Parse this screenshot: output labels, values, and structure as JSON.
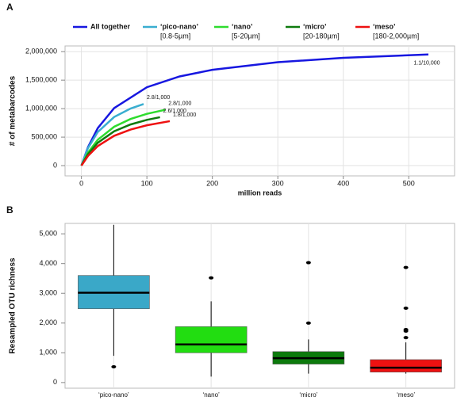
{
  "chart_data": [
    {
      "type": "line",
      "panel": "A",
      "x_label": "million reads",
      "y_label": "# of metabarcodes",
      "xlim": [
        -25,
        570
      ],
      "xticks": [
        0,
        100,
        200,
        300,
        400,
        500
      ],
      "ylim": [
        -180000,
        2100000
      ],
      "yticks": [
        0,
        {
          "value": 500000,
          "label": "500,000"
        },
        {
          "value": 1000000,
          "label": "1,000,000"
        },
        {
          "value": 1500000,
          "label": "1,500,000"
        },
        {
          "value": 2000000,
          "label": "2,000,000"
        }
      ],
      "grid": true,
      "series": [
        {
          "name": "All together",
          "color": "#1717e0",
          "end_label": "1.1/10,000",
          "x": [
            0,
            10,
            25,
            50,
            100,
            150,
            200,
            300,
            400,
            530
          ],
          "values": [
            0,
            322000,
            659000,
            1009000,
            1376000,
            1565000,
            1681000,
            1815000,
            1891000,
            1950000
          ]
        },
        {
          "name": "‘pico-nano’",
          "size_range": "[0.8-5µm]",
          "color": "#3aaed0",
          "end_label": "2.8/1,000",
          "x": [
            0,
            10,
            25,
            50,
            75,
            95
          ],
          "values": [
            0,
            307000,
            590000,
            853000,
            1001000,
            1080000
          ]
        },
        {
          "name": "‘nano’",
          "size_range": "[5-20µm]",
          "color": "#2edc2e",
          "end_label": "2.8/1,000",
          "x": [
            0,
            10,
            25,
            50,
            75,
            100,
            128
          ],
          "values": [
            0,
            227000,
            454000,
            682000,
            818000,
            909000,
            980000
          ]
        },
        {
          "name": "‘micro’",
          "size_range": "[20-180µm]",
          "color": "#0e7a0e",
          "end_label": "2.6/1,000",
          "x": [
            0,
            10,
            25,
            50,
            75,
            100,
            120
          ],
          "values": [
            0,
            201000,
            401000,
            602000,
            722000,
            803000,
            850000
          ]
        },
        {
          "name": "‘meso’",
          "size_range": "[180-2,000µm]",
          "color": "#ee1111",
          "end_label": "1.8/1,000",
          "x": [
            0,
            10,
            25,
            50,
            75,
            100,
            135
          ],
          "values": [
            0,
            169000,
            343000,
            523000,
            633000,
            708000,
            780000
          ]
        }
      ]
    },
    {
      "type": "box",
      "panel": "B",
      "y_label": "Resampled OTU richness",
      "ylim": [
        -190,
        5350
      ],
      "yticks": [
        0,
        {
          "value": 1000,
          "label": "1,000"
        },
        {
          "value": 2000,
          "label": "2,000"
        },
        {
          "value": 3000,
          "label": "3,000"
        },
        {
          "value": 4000,
          "label": "4,000"
        },
        {
          "value": 5000,
          "label": "5,000"
        }
      ],
      "grid": true,
      "categories": [
        "‘pico-nano’",
        "‘nano’",
        "‘micro’",
        "‘meso’"
      ],
      "colors": [
        "#3aa8c8",
        "#22dd11",
        "#0c7a0c",
        "#ee1111"
      ],
      "boxes": [
        {
          "low": 900,
          "q1": 2480,
          "median": 3020,
          "q3": 3600,
          "high": 5300,
          "outliers": [
            530
          ]
        },
        {
          "low": 200,
          "q1": 1000,
          "median": 1280,
          "q3": 1880,
          "high": 2730,
          "outliers": [
            3520
          ]
        },
        {
          "low": 300,
          "q1": 620,
          "median": 820,
          "q3": 1040,
          "high": 1450,
          "outliers": [
            2000,
            4030
          ]
        },
        {
          "low": 300,
          "q1": 350,
          "median": 500,
          "q3": 770,
          "high": 1350,
          "outliers": [
            1510,
            1730,
            1780,
            2500,
            3870
          ]
        }
      ]
    }
  ]
}
